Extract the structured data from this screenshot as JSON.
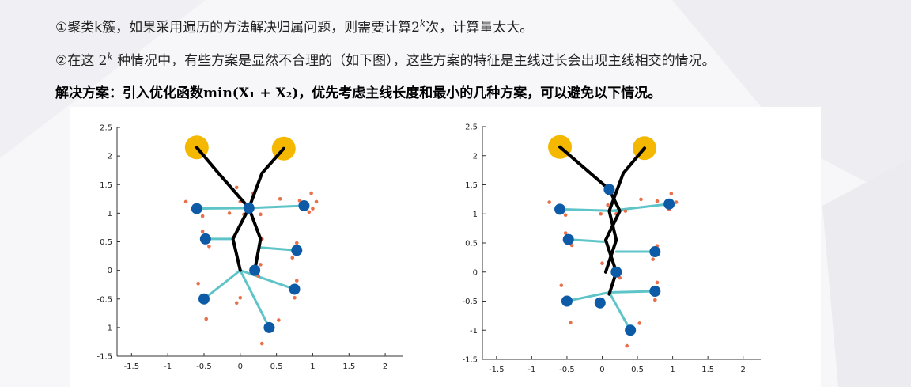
{
  "text": {
    "l1_a": "①聚类k簇，如果采用遍历的方法解决归属问题，则需要计算",
    "l1_b": "2",
    "l1_sup": "k",
    "l1_c": "次，计算量太大。",
    "l2_a": "②在这 ",
    "l2_b": "2",
    "l2_sup": "k",
    "l2_c": " 种情况中，有些方案是显然不合理的（如下图），这些方案的特征是主线过长会出现主线相交的情况。",
    "l3_a": "解决方案：引入优化函数",
    "l3_b": "min(X₁ + X₂)",
    "l3_c": "，优先考虑主线长度和最小的几种方案，可以避免以下情况。"
  },
  "colors": {
    "big_yellow": "#f5b800",
    "cluster_blue": "#0d5aa7",
    "small_orange": "#e8704a",
    "branch_teal": "#5ec4c8",
    "main_black": "#000000"
  },
  "chart_data": [
    {
      "type": "scatter",
      "xlim": [
        -1.7,
        2.25
      ],
      "ylim": [
        -1.5,
        2.5
      ],
      "xticks": [
        -1.5,
        -1,
        -0.5,
        0,
        0.5,
        1,
        1.5,
        2
      ],
      "yticks": [
        -1.5,
        -1,
        -0.5,
        0,
        0.5,
        1,
        1.5,
        2,
        2.5
      ],
      "big_points": [
        [
          -0.6,
          2.15
        ],
        [
          0.6,
          2.13
        ]
      ],
      "cluster_points": [
        [
          -0.6,
          1.08
        ],
        [
          0.12,
          1.09
        ],
        [
          0.88,
          1.13
        ],
        [
          -0.48,
          0.55
        ],
        [
          0.78,
          0.35
        ],
        [
          0.2,
          0.0
        ],
        [
          0.75,
          -0.33
        ],
        [
          -0.5,
          -0.5
        ],
        [
          0.4,
          -1.0
        ]
      ],
      "small_points": [
        [
          -0.75,
          1.2
        ],
        [
          -0.52,
          0.95
        ],
        [
          -0.05,
          1.45
        ],
        [
          0.18,
          1.35
        ],
        [
          0.0,
          1.2
        ],
        [
          0.05,
          0.98
        ],
        [
          0.28,
          0.98
        ],
        [
          -0.15,
          1.0
        ],
        [
          0.55,
          1.25
        ],
        [
          0.82,
          1.22
        ],
        [
          1.0,
          1.08
        ],
        [
          1.05,
          1.2
        ],
        [
          0.95,
          1.02
        ],
        [
          0.98,
          1.35
        ],
        [
          -0.52,
          0.68
        ],
        [
          -0.43,
          0.42
        ],
        [
          0.3,
          0.55
        ],
        [
          0.78,
          0.48
        ],
        [
          0.72,
          0.22
        ],
        [
          0.28,
          0.1
        ],
        [
          0.25,
          -0.1
        ],
        [
          0.78,
          -0.18
        ],
        [
          0.75,
          -0.48
        ],
        [
          -0.58,
          -0.23
        ],
        [
          -0.47,
          -0.85
        ],
        [
          0.0,
          -0.48
        ],
        [
          -0.05,
          -0.57
        ],
        [
          0.3,
          -1.28
        ],
        [
          0.53,
          -0.87
        ]
      ],
      "main_lines": [
        [
          [
            -0.6,
            2.15
          ],
          [
            -0.3,
            1.7
          ],
          [
            0.12,
            1.09
          ],
          [
            0.28,
            0.55
          ],
          [
            0.2,
            0.0
          ]
        ],
        [
          [
            0.6,
            2.13
          ],
          [
            0.3,
            1.7
          ],
          [
            0.12,
            1.09
          ],
          [
            -0.1,
            0.55
          ],
          [
            0.0,
            0.0
          ]
        ]
      ],
      "branches": [
        [
          [
            0.12,
            1.09
          ],
          [
            -0.6,
            1.08
          ]
        ],
        [
          [
            0.12,
            1.09
          ],
          [
            0.88,
            1.13
          ]
        ],
        [
          [
            -0.1,
            0.55
          ],
          [
            -0.48,
            0.55
          ]
        ],
        [
          [
            0.28,
            0.4
          ],
          [
            0.78,
            0.35
          ]
        ],
        [
          [
            0.0,
            0.0
          ],
          [
            0.75,
            -0.33
          ]
        ],
        [
          [
            0.0,
            0.0
          ],
          [
            -0.5,
            -0.5
          ]
        ],
        [
          [
            0.0,
            0.0
          ],
          [
            0.4,
            -1.0
          ]
        ]
      ]
    },
    {
      "type": "scatter",
      "xlim": [
        -1.7,
        2.25
      ],
      "ylim": [
        -1.5,
        2.5
      ],
      "xticks": [
        -1.5,
        -1,
        -0.5,
        0,
        0.5,
        1,
        1.5,
        2
      ],
      "yticks": [
        -1.5,
        -1,
        -0.5,
        0,
        0.5,
        1,
        1.5,
        2,
        2.5
      ],
      "big_points": [
        [
          -0.6,
          2.15
        ],
        [
          0.6,
          2.13
        ]
      ],
      "cluster_points": [
        [
          -0.6,
          1.08
        ],
        [
          0.1,
          1.42
        ],
        [
          0.95,
          1.17
        ],
        [
          -0.48,
          0.56
        ],
        [
          0.75,
          0.35
        ],
        [
          0.2,
          0.0
        ],
        [
          0.75,
          -0.33
        ],
        [
          -0.5,
          -0.5
        ],
        [
          -0.03,
          -0.53
        ],
        [
          0.4,
          -1.0
        ]
      ],
      "small_points": [
        [
          -0.75,
          1.2
        ],
        [
          -0.52,
          0.98
        ],
        [
          -0.02,
          1.0
        ],
        [
          0.2,
          1.0
        ],
        [
          0.08,
          1.15
        ],
        [
          0.33,
          1.05
        ],
        [
          0.55,
          1.25
        ],
        [
          0.78,
          1.22
        ],
        [
          0.95,
          1.08
        ],
        [
          0.98,
          1.35
        ],
        [
          1.05,
          1.2
        ],
        [
          -0.52,
          0.67
        ],
        [
          -0.43,
          0.46
        ],
        [
          0.0,
          0.15
        ],
        [
          0.78,
          0.45
        ],
        [
          0.72,
          0.22
        ],
        [
          0.25,
          -0.1
        ],
        [
          0.78,
          -0.18
        ],
        [
          0.75,
          -0.48
        ],
        [
          -0.58,
          -0.23
        ],
        [
          -0.45,
          -0.87
        ],
        [
          0.0,
          -0.47
        ],
        [
          0.35,
          -1.27
        ],
        [
          0.53,
          -0.88
        ]
      ],
      "main_lines": [
        [
          [
            -0.6,
            2.15
          ],
          [
            0.1,
            1.42
          ],
          [
            0.25,
            1.05
          ],
          [
            0.05,
            0.55
          ],
          [
            0.2,
            0.0
          ],
          [
            0.1,
            -0.38
          ]
        ],
        [
          [
            0.6,
            2.13
          ],
          [
            0.3,
            1.7
          ],
          [
            0.1,
            1.05
          ],
          [
            0.2,
            0.55
          ],
          [
            0.05,
            0.0
          ]
        ]
      ],
      "branches": [
        [
          [
            0.25,
            1.05
          ],
          [
            -0.6,
            1.08
          ]
        ],
        [
          [
            0.1,
            1.05
          ],
          [
            0.95,
            1.17
          ]
        ],
        [
          [
            0.05,
            0.52
          ],
          [
            -0.48,
            0.56
          ]
        ],
        [
          [
            0.2,
            0.35
          ],
          [
            0.75,
            0.35
          ]
        ],
        [
          [
            0.1,
            -0.35
          ],
          [
            0.75,
            -0.33
          ]
        ],
        [
          [
            0.1,
            -0.35
          ],
          [
            -0.5,
            -0.5
          ]
        ],
        [
          [
            0.1,
            -0.35
          ],
          [
            0.4,
            -1.0
          ]
        ]
      ]
    }
  ]
}
